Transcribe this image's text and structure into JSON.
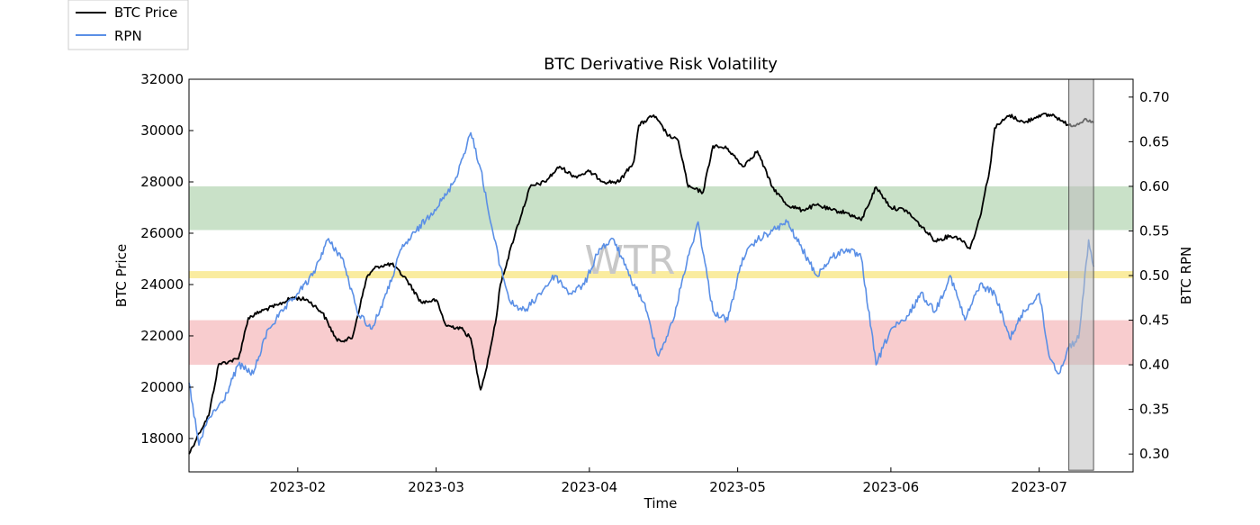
{
  "chart_data": {
    "type": "line",
    "title": "BTC Derivative Risk Volatility",
    "xlabel": "Time",
    "ylabel_left": "BTC Price",
    "ylabel_right": "BTC RPN",
    "watermark": "WTR",
    "x_range": [
      "2023-01-10",
      "2023-07-20"
    ],
    "x_ticks": [
      "2023-02",
      "2023-03",
      "2023-04",
      "2023-05",
      "2023-06",
      "2023-07"
    ],
    "ylim_left": [
      16700,
      32000
    ],
    "yticks_left": [
      18000,
      20000,
      22000,
      24000,
      26000,
      28000,
      30000,
      32000
    ],
    "ylim_right": [
      0.28,
      0.72
    ],
    "yticks_right": [
      0.3,
      0.35,
      0.4,
      0.45,
      0.5,
      0.55,
      0.6,
      0.65,
      0.7
    ],
    "legend": [
      {
        "label": "BTC Price",
        "color": "#000000"
      },
      {
        "label": "RPN",
        "color": "#5a8fe6"
      }
    ],
    "bands": [
      {
        "name": "high-risk-band",
        "axis": "right",
        "from": 0.551,
        "to": 0.6,
        "color": "#9cc99a"
      },
      {
        "name": "neutral-band",
        "axis": "right",
        "from": 0.497,
        "to": 0.505,
        "color": "#f5dc50"
      },
      {
        "name": "low-risk-band",
        "axis": "right",
        "from": 0.4,
        "to": 0.45,
        "color": "#f2a2a6"
      }
    ],
    "highlight_window": {
      "from": "2023-07-07",
      "to": "2023-07-12",
      "color": "#bdbdbd"
    },
    "series": [
      {
        "name": "BTC Price",
        "axis": "left",
        "color": "#000000",
        "x": [
          "2023-01-10",
          "2023-01-12",
          "2023-01-14",
          "2023-01-16",
          "2023-01-18",
          "2023-01-20",
          "2023-01-22",
          "2023-01-25",
          "2023-01-28",
          "2023-01-31",
          "2023-02-03",
          "2023-02-06",
          "2023-02-09",
          "2023-02-12",
          "2023-02-15",
          "2023-02-17",
          "2023-02-20",
          "2023-02-23",
          "2023-02-26",
          "2023-03-01",
          "2023-03-03",
          "2023-03-06",
          "2023-03-08",
          "2023-03-10",
          "2023-03-11",
          "2023-03-13",
          "2023-03-14",
          "2023-03-17",
          "2023-03-20",
          "2023-03-23",
          "2023-03-26",
          "2023-03-29",
          "2023-04-01",
          "2023-04-04",
          "2023-04-07",
          "2023-04-10",
          "2023-04-11",
          "2023-04-14",
          "2023-04-17",
          "2023-04-19",
          "2023-04-21",
          "2023-04-24",
          "2023-04-26",
          "2023-04-29",
          "2023-05-02",
          "2023-05-05",
          "2023-05-08",
          "2023-05-11",
          "2023-05-14",
          "2023-05-17",
          "2023-05-20",
          "2023-05-23",
          "2023-05-26",
          "2023-05-29",
          "2023-06-01",
          "2023-06-04",
          "2023-06-07",
          "2023-06-10",
          "2023-06-13",
          "2023-06-15",
          "2023-06-17",
          "2023-06-19",
          "2023-06-21",
          "2023-06-22",
          "2023-06-25",
          "2023-06-28",
          "2023-07-01",
          "2023-07-04",
          "2023-07-06",
          "2023-07-08",
          "2023-07-10",
          "2023-07-12"
        ],
        "values": [
          17400,
          18200,
          18900,
          20900,
          21000,
          21100,
          22700,
          23000,
          23200,
          23500,
          23400,
          22900,
          21800,
          21900,
          24300,
          24700,
          24800,
          24200,
          23300,
          23400,
          22400,
          22300,
          21900,
          19900,
          20600,
          22500,
          24000,
          26000,
          27800,
          28000,
          28600,
          28200,
          28400,
          28000,
          28000,
          28800,
          30200,
          30600,
          29800,
          29600,
          27800,
          27600,
          29400,
          29300,
          28600,
          29200,
          27800,
          27100,
          26900,
          27100,
          26900,
          26800,
          26500,
          27800,
          27000,
          26900,
          26300,
          25700,
          25900,
          25800,
          25400,
          26600,
          28500,
          30100,
          30600,
          30300,
          30600,
          30600,
          30300,
          30200,
          30400,
          30300
        ]
      },
      {
        "name": "RPN",
        "axis": "right",
        "color": "#5a8fe6",
        "x": [
          "2023-01-10",
          "2023-01-12",
          "2023-01-14",
          "2023-01-17",
          "2023-01-20",
          "2023-01-23",
          "2023-01-26",
          "2023-01-29",
          "2023-02-01",
          "2023-02-04",
          "2023-02-07",
          "2023-02-10",
          "2023-02-13",
          "2023-02-16",
          "2023-02-19",
          "2023-02-22",
          "2023-02-25",
          "2023-02-28",
          "2023-03-03",
          "2023-03-05",
          "2023-03-08",
          "2023-03-10",
          "2023-03-12",
          "2023-03-14",
          "2023-03-16",
          "2023-03-19",
          "2023-03-22",
          "2023-03-25",
          "2023-03-28",
          "2023-03-31",
          "2023-04-03",
          "2023-04-06",
          "2023-04-09",
          "2023-04-12",
          "2023-04-15",
          "2023-04-18",
          "2023-04-20",
          "2023-04-23",
          "2023-04-26",
          "2023-04-29",
          "2023-05-02",
          "2023-05-05",
          "2023-05-08",
          "2023-05-11",
          "2023-05-14",
          "2023-05-17",
          "2023-05-20",
          "2023-05-23",
          "2023-05-26",
          "2023-05-29",
          "2023-06-01",
          "2023-06-04",
          "2023-06-07",
          "2023-06-10",
          "2023-06-13",
          "2023-06-16",
          "2023-06-19",
          "2023-06-22",
          "2023-06-25",
          "2023-06-28",
          "2023-07-01",
          "2023-07-03",
          "2023-07-05",
          "2023-07-07",
          "2023-07-09",
          "2023-07-11",
          "2023-07-12"
        ],
        "values": [
          0.38,
          0.31,
          0.34,
          0.36,
          0.4,
          0.39,
          0.44,
          0.46,
          0.48,
          0.5,
          0.54,
          0.52,
          0.46,
          0.44,
          0.48,
          0.53,
          0.55,
          0.57,
          0.59,
          0.61,
          0.66,
          0.62,
          0.56,
          0.51,
          0.47,
          0.46,
          0.48,
          0.5,
          0.48,
          0.49,
          0.53,
          0.54,
          0.5,
          0.47,
          0.41,
          0.45,
          0.5,
          0.56,
          0.46,
          0.45,
          0.52,
          0.54,
          0.55,
          0.56,
          0.53,
          0.5,
          0.52,
          0.53,
          0.52,
          0.4,
          0.44,
          0.45,
          0.48,
          0.46,
          0.5,
          0.45,
          0.49,
          0.48,
          0.43,
          0.46,
          0.48,
          0.41,
          0.39,
          0.42,
          0.43,
          0.54,
          0.51
        ]
      }
    ]
  }
}
